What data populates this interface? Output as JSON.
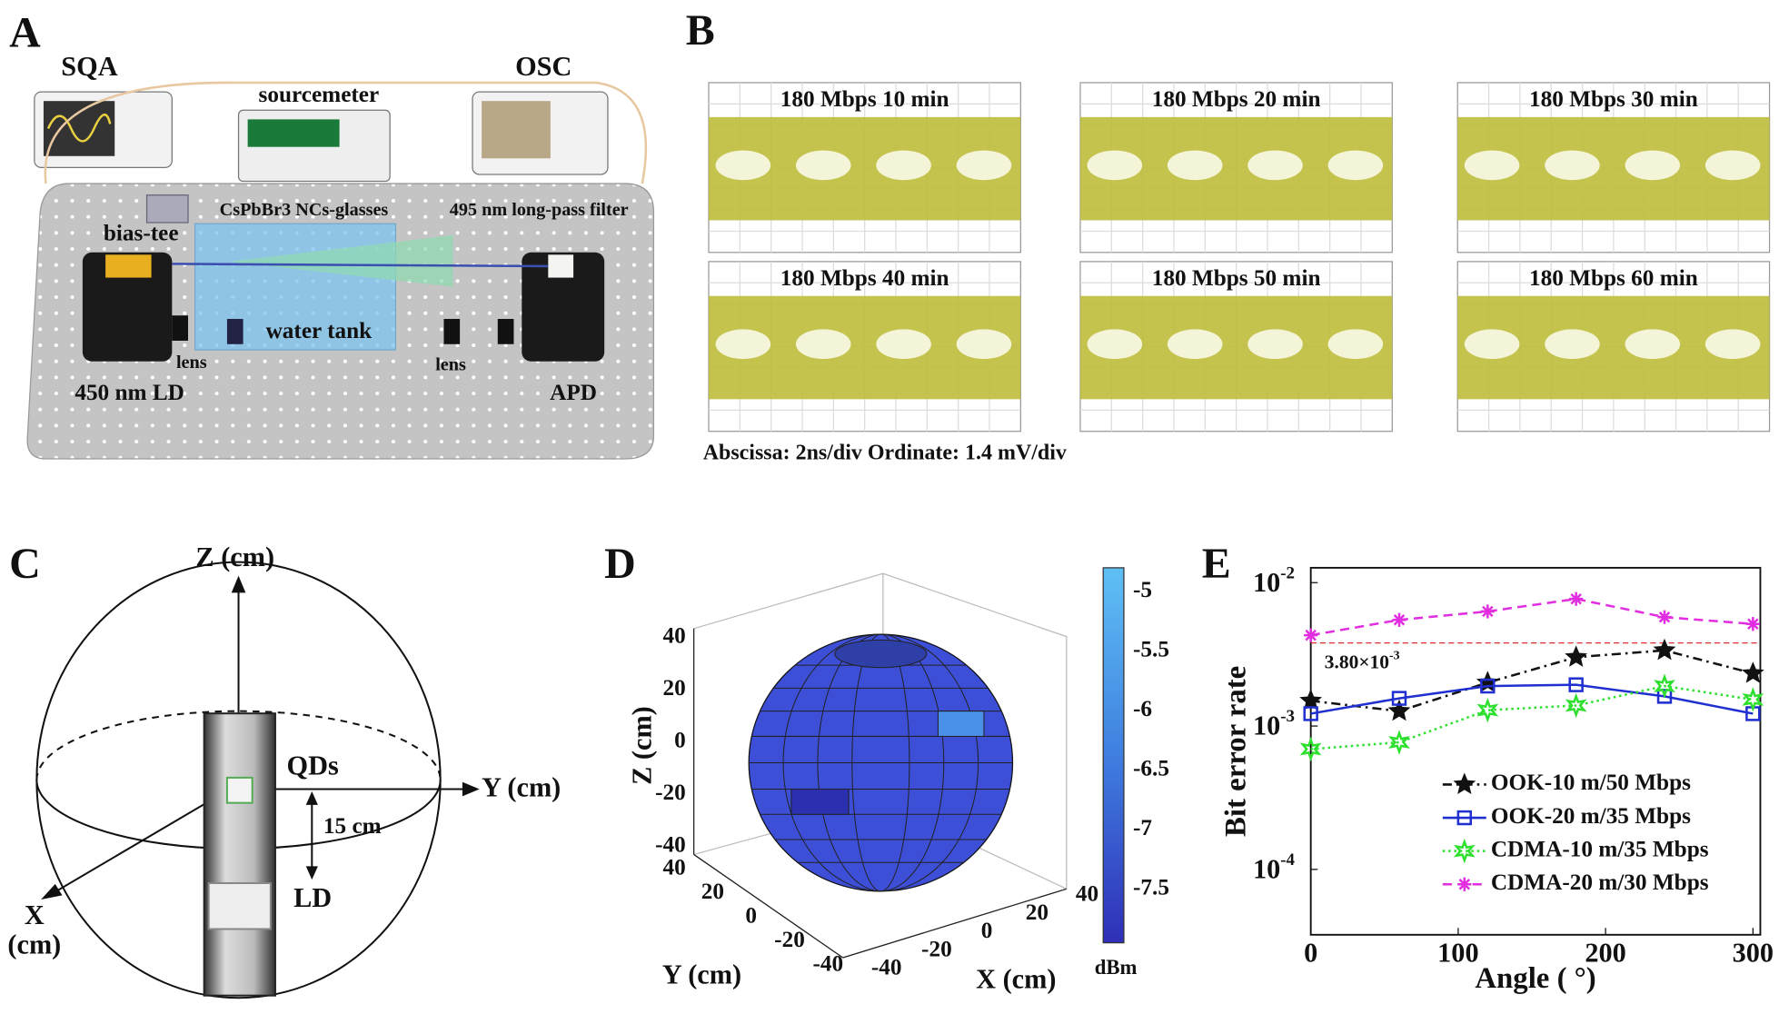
{
  "panel_a": {
    "label": "A",
    "sqa": "SQA",
    "sourcemeter": "sourcemeter",
    "osc": "OSC",
    "glasses": "CsPbBr3 NCs-glasses",
    "filter": "495 nm long-pass filter",
    "bias_tee": "bias-tee",
    "water_tank": "water tank",
    "lens_left": "lens",
    "lens_right": "lens",
    "ld": "450 nm LD",
    "apd": "APD"
  },
  "panel_b": {
    "label": "B",
    "eyes": [
      "180 Mbps  10 min",
      "180 Mbps  20 min",
      "180 Mbps  30 min",
      "180 Mbps  40 min",
      "180 Mbps  50 min",
      "180 Mbps  60 min"
    ],
    "caption": "Abscissa: 2ns/div  Ordinate: 1.4 mV/div"
  },
  "panel_c": {
    "label": "C",
    "z_axis": "Z (cm)",
    "y_axis": "Y (cm)",
    "x_axis": [
      "X",
      "(cm)"
    ],
    "qds": "QDs",
    "distance": "15 cm",
    "ld": "LD"
  },
  "panel_d": {
    "label": "D",
    "z_label": "Z (cm)",
    "y_label": "Y (cm)",
    "x_label": "X (cm)",
    "zticks": [
      40,
      20,
      0,
      -20,
      -40
    ],
    "yticks": [
      40,
      20,
      0,
      -20,
      -40
    ],
    "xticks": [
      -40,
      -20,
      0,
      20,
      40
    ],
    "colorbar": {
      "lim": [
        -7.95,
        -4.8
      ],
      "ticks": [
        -5,
        -5.5,
        -6,
        -6.5,
        -7,
        -7.5
      ],
      "label": "dBm"
    }
  },
  "chart_data": {
    "type": "line",
    "label": "E",
    "x_label": "Angle ( °)",
    "y_label": "Bit error rate",
    "x": [
      0,
      60,
      120,
      180,
      240,
      300
    ],
    "xlim": [
      0,
      305
    ],
    "xticks": [
      0,
      100,
      200,
      300
    ],
    "ylim": [
      3.5e-05,
      0.0127
    ],
    "log_y": true,
    "yticks": [
      {
        "value": 0.0001,
        "label": "10",
        "exponent": "-4"
      },
      {
        "value": 0.001,
        "label": "10",
        "exponent": "-3"
      },
      {
        "value": 0.01,
        "label": "10",
        "exponent": "-2"
      }
    ],
    "threshold": {
      "value": 0.0038,
      "color": "#e03030",
      "label": "3.80×10",
      "exponent": "-3"
    },
    "legend": "lower right",
    "series": [
      {
        "name": "OOK-10 m/50 Mbps",
        "color": "#111111",
        "marker": "star",
        "dash": "8 4 2 4",
        "values": [
          0.0015,
          0.00127,
          0.00201,
          0.00302,
          0.00337,
          0.00233
        ]
      },
      {
        "name": "OOK-20 m/35 Mbps",
        "color": "#1f2fd0",
        "marker": "square",
        "dash": "none",
        "values": [
          0.00122,
          0.00156,
          0.0019,
          0.00194,
          0.00161,
          0.00122
        ]
      },
      {
        "name": "CDMA-10 m/35 Mbps",
        "color": "#2ee02e",
        "marker": "hexagram",
        "dash": "2 3",
        "values": [
          0.00069,
          0.00077,
          0.00129,
          0.00139,
          0.0019,
          0.00153
        ]
      },
      {
        "name": "CDMA-20 m/30 Mbps",
        "color": "#e02ee0",
        "marker": "asterisk",
        "dash": "8 5",
        "values": [
          0.0043,
          0.0055,
          0.0063,
          0.0077,
          0.00575,
          0.00515
        ]
      }
    ]
  }
}
